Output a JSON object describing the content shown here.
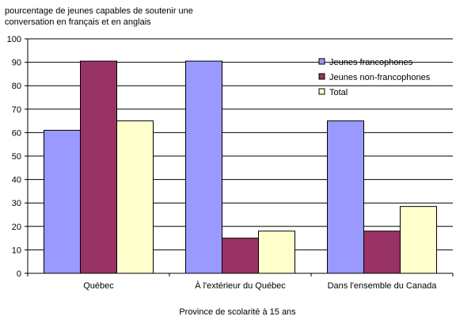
{
  "chart_data": {
    "type": "bar",
    "ylabel_lines": [
      "pourcentage de jeunes capables de soutenir une",
      "conversation en français et en anglais"
    ],
    "xlabel": "Province de scolarité à 15 ans",
    "categories": [
      "Québec",
      "À l'extérieur du Québec",
      "Dans l'ensemble du Canada"
    ],
    "series": [
      {
        "name": "Jeunes francophones",
        "color": "#9999ff",
        "values": [
          61,
          90.5,
          65
        ]
      },
      {
        "name": "Jeunes non-francophones",
        "color": "#993366",
        "values": [
          90.5,
          15,
          18
        ]
      },
      {
        "name": "Total",
        "color": "#ffffcc",
        "values": [
          65,
          18,
          28.5
        ]
      }
    ],
    "ylim": [
      0,
      100
    ],
    "yticks": [
      0,
      10,
      20,
      30,
      40,
      50,
      60,
      70,
      80,
      90,
      100
    ],
    "grid": true,
    "legend_position": "top-right"
  }
}
